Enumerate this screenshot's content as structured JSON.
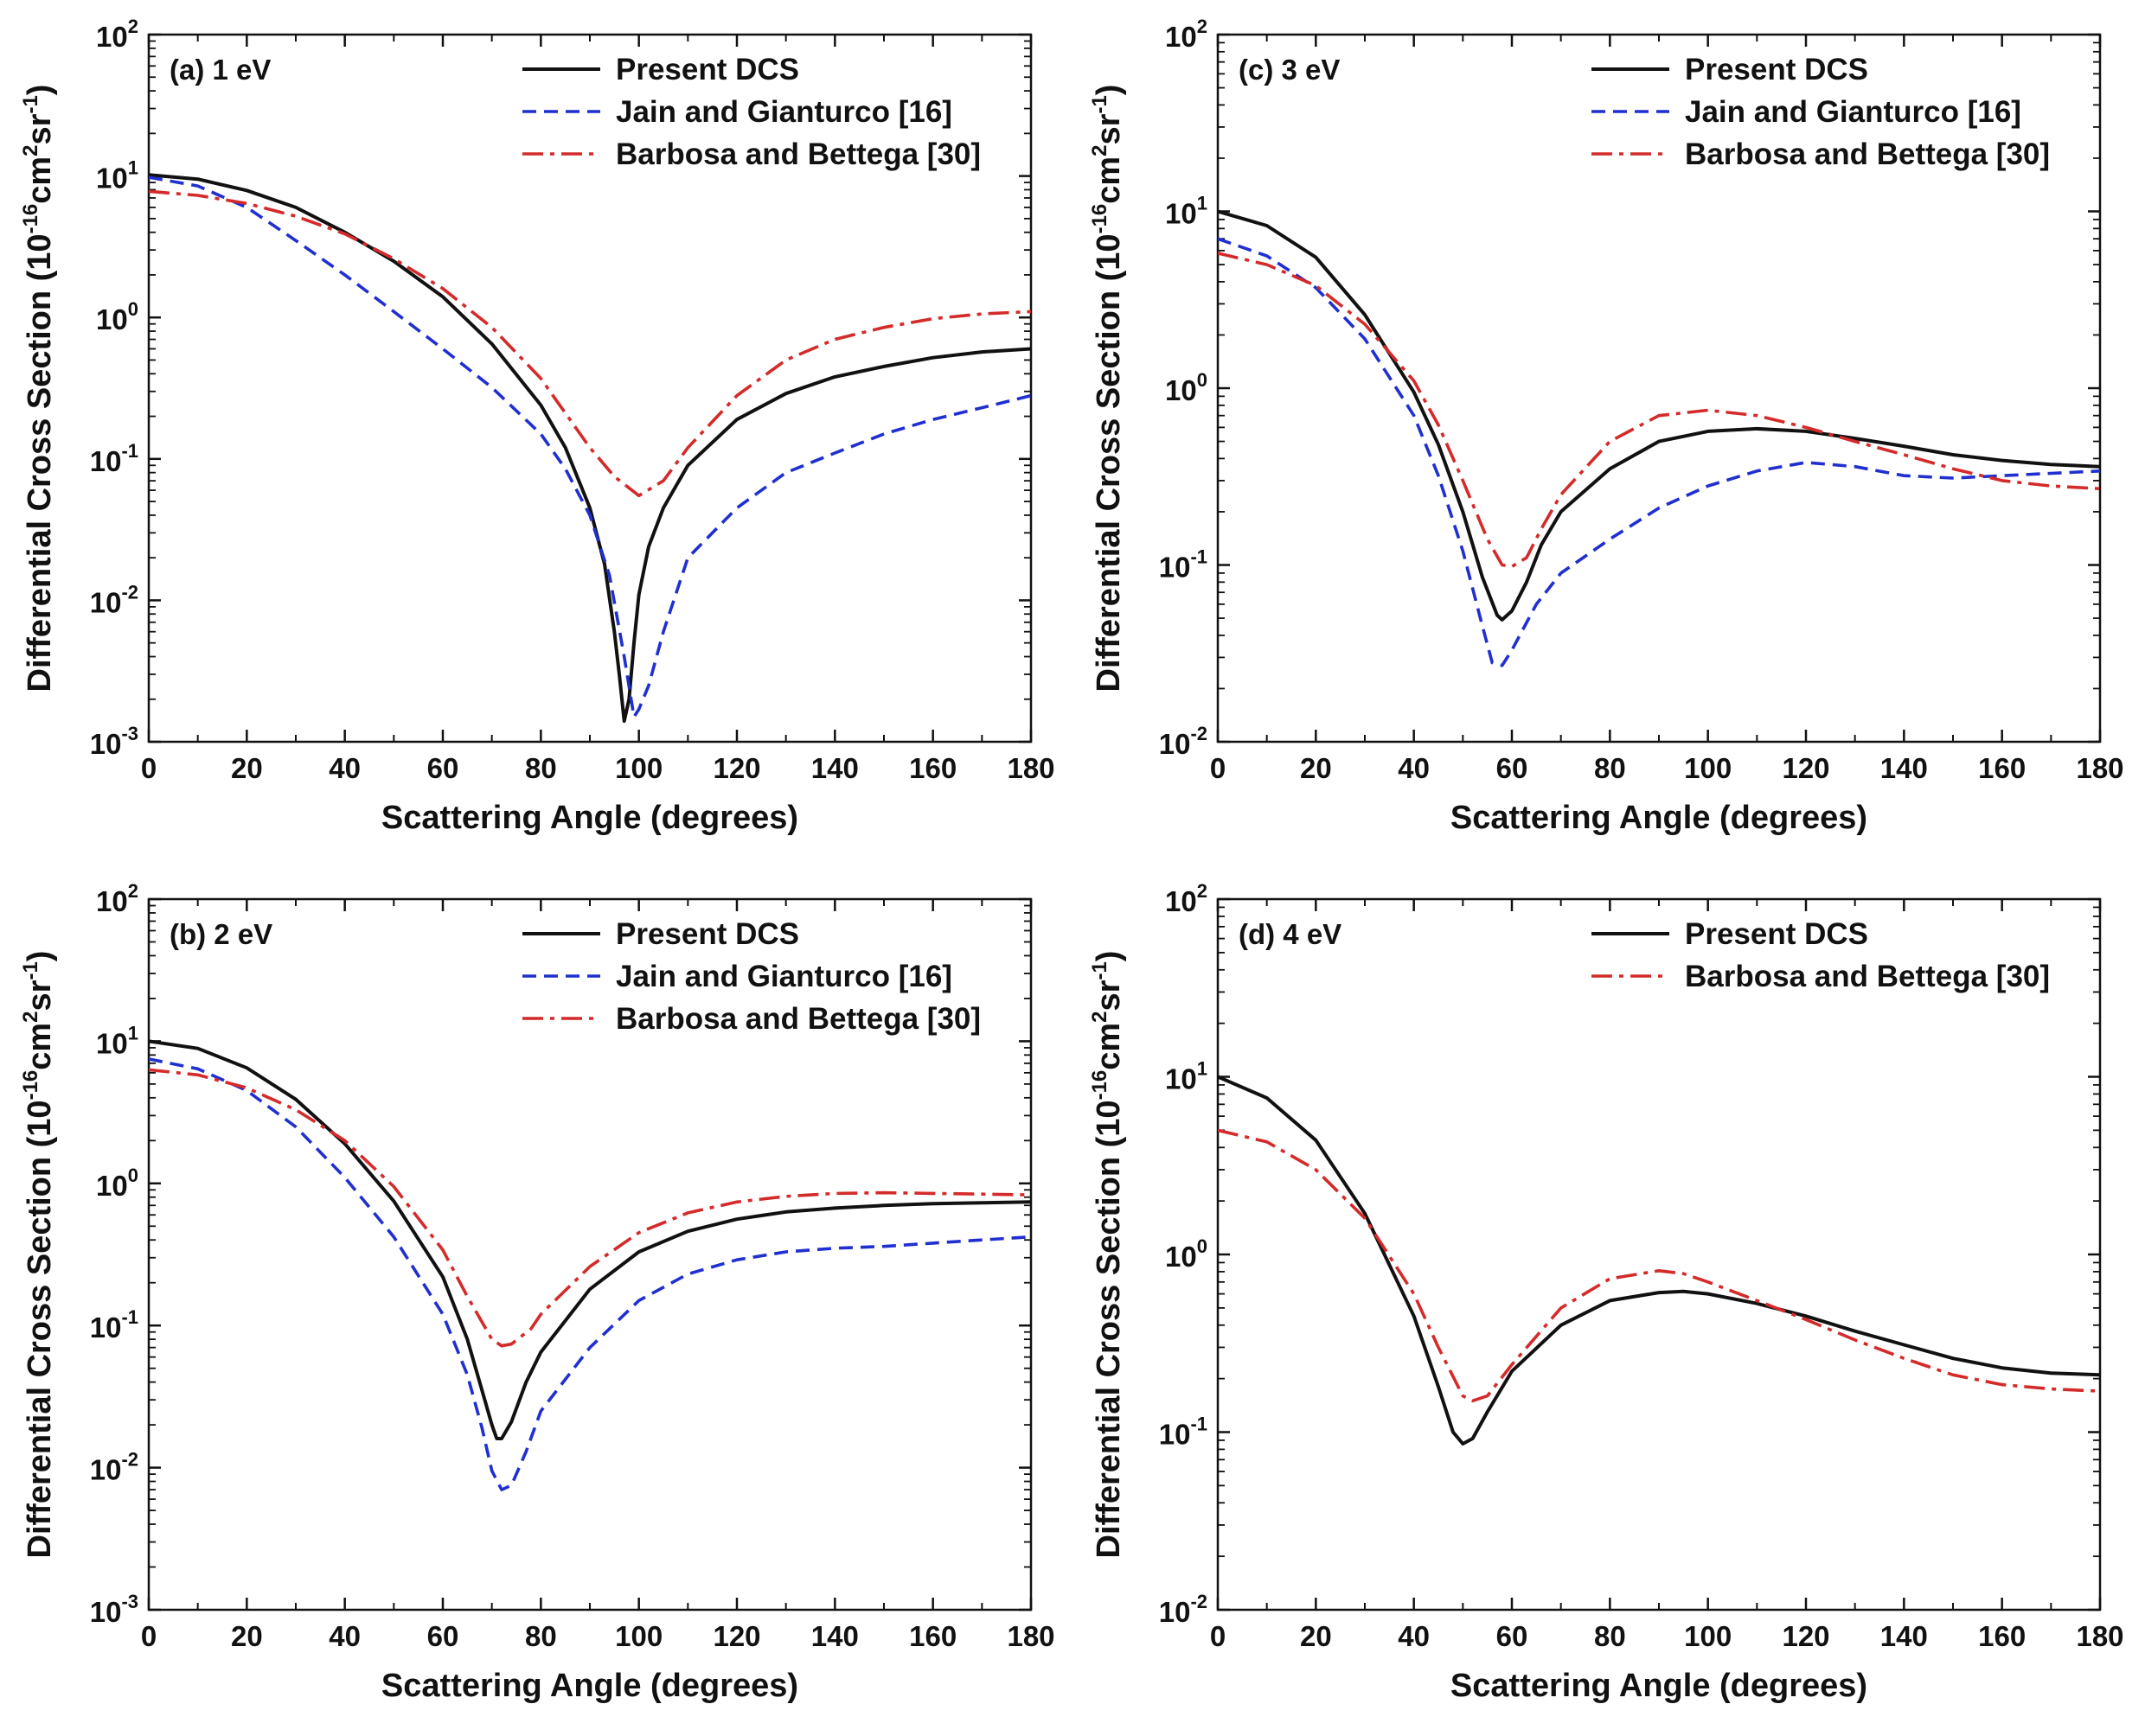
{
  "chart_data": [
    {
      "type": "line",
      "panel_label": "(a) 1 eV",
      "xlabel": "Scattering Angle (degrees)",
      "ylabel": "Differential Cross Section (10-16cm2sr-1)",
      "ylabel_parts": {
        "main": "Differential Cross Section (10",
        "exp1": "-16",
        "mid": "cm",
        "exp2": "2",
        "mid2": "sr",
        "exp3": "-1",
        "end": ")"
      },
      "xlim": [
        0,
        180
      ],
      "xticks": [
        "0",
        "20",
        "40",
        "60",
        "80",
        "100",
        "120",
        "140",
        "160",
        "180"
      ],
      "ylim": [
        0.001,
        100
      ],
      "yscale": "log",
      "yticks": [
        {
          "base": "10",
          "exp": "-3"
        },
        {
          "base": "10",
          "exp": "-2"
        },
        {
          "base": "10",
          "exp": "-1"
        },
        {
          "base": "10",
          "exp": "0"
        },
        {
          "base": "10",
          "exp": "1"
        },
        {
          "base": "10",
          "exp": "2"
        }
      ],
      "legend_position": "top-right",
      "series": [
        {
          "name": "Present DCS",
          "color": "#111111",
          "dash": "solid",
          "x": [
            0,
            10,
            20,
            30,
            40,
            50,
            60,
            70,
            80,
            85,
            90,
            93,
            95,
            96,
            97,
            98,
            99,
            100,
            102,
            105,
            110,
            120,
            130,
            140,
            150,
            160,
            170,
            180
          ],
          "y": [
            10.2,
            9.5,
            7.9,
            6.0,
            4.0,
            2.5,
            1.4,
            0.65,
            0.24,
            0.12,
            0.045,
            0.018,
            0.006,
            0.003,
            0.0014,
            0.002,
            0.005,
            0.011,
            0.024,
            0.045,
            0.09,
            0.19,
            0.29,
            0.38,
            0.45,
            0.52,
            0.57,
            0.6
          ]
        },
        {
          "name": "Jain and Gianturco [16]",
          "color": "#1f2fd0",
          "dash": "dashed",
          "x": [
            0,
            10,
            20,
            30,
            40,
            50,
            60,
            70,
            80,
            85,
            90,
            94,
            97,
            99,
            100,
            102,
            105,
            110,
            120,
            130,
            140,
            150,
            160,
            170,
            180
          ],
          "y": [
            9.8,
            8.5,
            6.0,
            3.5,
            2.0,
            1.1,
            0.6,
            0.32,
            0.15,
            0.085,
            0.04,
            0.015,
            0.004,
            0.0015,
            0.0017,
            0.0025,
            0.006,
            0.02,
            0.045,
            0.08,
            0.11,
            0.15,
            0.19,
            0.23,
            0.28
          ]
        },
        {
          "name": "Barbosa and Bettega [30]",
          "color": "#d42a2a",
          "dash": "dashdot",
          "x": [
            0,
            10,
            20,
            30,
            40,
            50,
            60,
            70,
            80,
            90,
            95,
            100,
            105,
            110,
            120,
            130,
            140,
            150,
            160,
            170,
            180
          ],
          "y": [
            7.8,
            7.3,
            6.4,
            5.2,
            3.9,
            2.6,
            1.6,
            0.85,
            0.37,
            0.12,
            0.075,
            0.055,
            0.07,
            0.12,
            0.28,
            0.5,
            0.7,
            0.85,
            0.98,
            1.06,
            1.1
          ]
        }
      ]
    },
    {
      "type": "line",
      "panel_label": "(c) 3 eV",
      "xlabel": "Scattering Angle (degrees)",
      "ylabel": "Differential Cross Section (10-16cm2sr-1)",
      "ylabel_parts": {
        "main": "Differential Cross Section (10",
        "exp1": "-16",
        "mid": "cm",
        "exp2": "2",
        "mid2": "sr",
        "exp3": "-1",
        "end": ")"
      },
      "xlim": [
        0,
        180
      ],
      "xticks": [
        "0",
        "20",
        "40",
        "60",
        "80",
        "100",
        "120",
        "140",
        "160",
        "180"
      ],
      "ylim": [
        0.01,
        100
      ],
      "yscale": "log",
      "yticks": [
        {
          "base": "10",
          "exp": "-2"
        },
        {
          "base": "10",
          "exp": "-1"
        },
        {
          "base": "10",
          "exp": "0"
        },
        {
          "base": "10",
          "exp": "1"
        },
        {
          "base": "10",
          "exp": "2"
        }
      ],
      "legend_position": "top-right",
      "series": [
        {
          "name": "Present DCS",
          "color": "#111111",
          "dash": "solid",
          "x": [
            0,
            10,
            20,
            30,
            40,
            45,
            50,
            54,
            57,
            58,
            60,
            63,
            66,
            70,
            80,
            90,
            100,
            110,
            120,
            130,
            140,
            150,
            160,
            170,
            180
          ],
          "y": [
            10.0,
            8.3,
            5.5,
            2.6,
            0.95,
            0.48,
            0.2,
            0.085,
            0.052,
            0.049,
            0.055,
            0.08,
            0.13,
            0.2,
            0.35,
            0.5,
            0.57,
            0.59,
            0.57,
            0.52,
            0.47,
            0.42,
            0.39,
            0.37,
            0.36
          ]
        },
        {
          "name": "Jain and Gianturco [16]",
          "color": "#1f2fd0",
          "dash": "dashed",
          "x": [
            0,
            10,
            20,
            30,
            40,
            45,
            50,
            54,
            56,
            58,
            60,
            65,
            70,
            80,
            90,
            100,
            110,
            120,
            130,
            140,
            150,
            160,
            170,
            180
          ],
          "y": [
            7.0,
            5.6,
            3.7,
            1.9,
            0.7,
            0.32,
            0.12,
            0.045,
            0.028,
            0.027,
            0.033,
            0.06,
            0.09,
            0.14,
            0.21,
            0.28,
            0.34,
            0.38,
            0.36,
            0.32,
            0.31,
            0.32,
            0.33,
            0.34
          ]
        },
        {
          "name": "Barbosa and Bettega [30]",
          "color": "#d42a2a",
          "dash": "dashdot",
          "x": [
            0,
            10,
            20,
            30,
            40,
            45,
            50,
            55,
            58,
            60,
            63,
            66,
            70,
            80,
            90,
            100,
            110,
            120,
            130,
            140,
            150,
            160,
            170,
            180
          ],
          "y": [
            5.8,
            5.0,
            3.8,
            2.3,
            1.1,
            0.62,
            0.3,
            0.14,
            0.1,
            0.098,
            0.11,
            0.16,
            0.25,
            0.5,
            0.7,
            0.75,
            0.7,
            0.6,
            0.5,
            0.42,
            0.35,
            0.3,
            0.28,
            0.27
          ]
        }
      ]
    },
    {
      "type": "line",
      "panel_label": "(b) 2 eV",
      "xlabel": "Scattering Angle (degrees)",
      "ylabel": "Differential Cross Section (10-16cm2sr-1)",
      "ylabel_parts": {
        "main": "Differential Cross Section (10",
        "exp1": "-16",
        "mid": "cm",
        "exp2": "2",
        "mid2": "sr",
        "exp3": "-1",
        "end": ")"
      },
      "xlim": [
        0,
        180
      ],
      "xticks": [
        "0",
        "20",
        "40",
        "60",
        "80",
        "100",
        "120",
        "140",
        "160",
        "180"
      ],
      "ylim": [
        0.001,
        100
      ],
      "yscale": "log",
      "yticks": [
        {
          "base": "10",
          "exp": "-3"
        },
        {
          "base": "10",
          "exp": "-2"
        },
        {
          "base": "10",
          "exp": "-1"
        },
        {
          "base": "10",
          "exp": "0"
        },
        {
          "base": "10",
          "exp": "1"
        },
        {
          "base": "10",
          "exp": "2"
        }
      ],
      "legend_position": "top-right",
      "series": [
        {
          "name": "Present DCS",
          "color": "#111111",
          "dash": "solid",
          "x": [
            0,
            10,
            20,
            30,
            40,
            50,
            60,
            65,
            68,
            70,
            71,
            72,
            74,
            77,
            80,
            90,
            100,
            110,
            120,
            130,
            140,
            150,
            160,
            170,
            180
          ],
          "y": [
            10.0,
            8.9,
            6.5,
            3.9,
            1.9,
            0.75,
            0.22,
            0.08,
            0.035,
            0.02,
            0.016,
            0.016,
            0.021,
            0.04,
            0.065,
            0.18,
            0.33,
            0.46,
            0.56,
            0.63,
            0.67,
            0.7,
            0.72,
            0.73,
            0.74
          ]
        },
        {
          "name": "Jain and Gianturco [16]",
          "color": "#1f2fd0",
          "dash": "dashed",
          "x": [
            0,
            10,
            20,
            30,
            40,
            50,
            60,
            65,
            68,
            70,
            72,
            74,
            77,
            80,
            90,
            100,
            110,
            120,
            130,
            140,
            150,
            160,
            170,
            180
          ],
          "y": [
            7.5,
            6.4,
            4.5,
            2.5,
            1.1,
            0.42,
            0.12,
            0.045,
            0.019,
            0.0095,
            0.007,
            0.0075,
            0.013,
            0.025,
            0.07,
            0.15,
            0.23,
            0.29,
            0.33,
            0.35,
            0.36,
            0.38,
            0.4,
            0.42
          ]
        },
        {
          "name": "Barbosa and Bettega [30]",
          "color": "#d42a2a",
          "dash": "dashdot",
          "x": [
            0,
            10,
            20,
            30,
            40,
            50,
            60,
            65,
            70,
            72,
            74,
            78,
            80,
            90,
            100,
            110,
            120,
            130,
            140,
            150,
            160,
            170,
            180
          ],
          "y": [
            6.3,
            5.8,
            4.7,
            3.3,
            2.0,
            0.95,
            0.34,
            0.16,
            0.08,
            0.072,
            0.074,
            0.095,
            0.12,
            0.26,
            0.45,
            0.62,
            0.74,
            0.81,
            0.85,
            0.86,
            0.85,
            0.84,
            0.83
          ]
        }
      ]
    },
    {
      "type": "line",
      "panel_label": "(d) 4 eV",
      "xlabel": "Scattering Angle (degrees)",
      "ylabel": "Differential Cross Section (10-16cm2sr-1)",
      "ylabel_parts": {
        "main": "Differential Cross Section (10",
        "exp1": "-16",
        "mid": "cm",
        "exp2": "2",
        "mid2": "sr",
        "exp3": "-1",
        "end": ")"
      },
      "xlim": [
        0,
        180
      ],
      "xticks": [
        "0",
        "20",
        "40",
        "60",
        "80",
        "100",
        "120",
        "140",
        "160",
        "180"
      ],
      "ylim": [
        0.01,
        100
      ],
      "yscale": "log",
      "yticks": [
        {
          "base": "10",
          "exp": "-2"
        },
        {
          "base": "10",
          "exp": "-1"
        },
        {
          "base": "10",
          "exp": "0"
        },
        {
          "base": "10",
          "exp": "1"
        },
        {
          "base": "10",
          "exp": "2"
        }
      ],
      "legend_position": "top-right",
      "series": [
        {
          "name": "Present DCS",
          "color": "#111111",
          "dash": "solid",
          "x": [
            0,
            10,
            20,
            30,
            40,
            45,
            48,
            50,
            52,
            55,
            60,
            70,
            80,
            90,
            95,
            100,
            110,
            120,
            130,
            140,
            150,
            160,
            170,
            180
          ],
          "y": [
            10.0,
            7.6,
            4.4,
            1.7,
            0.45,
            0.18,
            0.1,
            0.086,
            0.092,
            0.13,
            0.22,
            0.4,
            0.55,
            0.61,
            0.62,
            0.6,
            0.53,
            0.45,
            0.37,
            0.31,
            0.26,
            0.23,
            0.215,
            0.21
          ]
        },
        {
          "name": "Barbosa and Bettega [30]",
          "color": "#d42a2a",
          "dash": "dashdot",
          "x": [
            0,
            10,
            20,
            30,
            40,
            45,
            50,
            52,
            55,
            60,
            70,
            80,
            90,
            95,
            100,
            110,
            120,
            130,
            140,
            150,
            160,
            170,
            180
          ],
          "y": [
            5.0,
            4.3,
            3.0,
            1.6,
            0.6,
            0.3,
            0.16,
            0.15,
            0.16,
            0.24,
            0.5,
            0.73,
            0.81,
            0.78,
            0.7,
            0.55,
            0.43,
            0.33,
            0.26,
            0.21,
            0.185,
            0.175,
            0.17
          ]
        }
      ]
    }
  ]
}
